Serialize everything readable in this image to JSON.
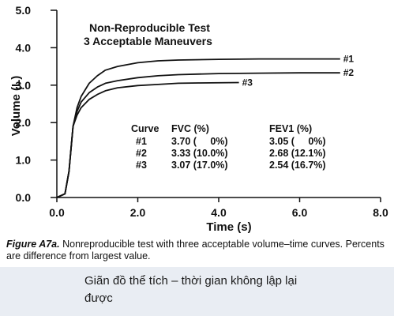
{
  "chart_data": {
    "type": "line",
    "title": "Non-Reproducible Test",
    "subtitle": "3 Acceptable Maneuvers",
    "xlabel": "Time (s)",
    "ylabel": "Volume (L)",
    "xlim": [
      0,
      8
    ],
    "ylim": [
      0,
      5
    ],
    "x_ticks": [
      "0.0",
      "2.0",
      "4.0",
      "6.0",
      "8.0"
    ],
    "y_ticks": [
      "0.0",
      "1.0",
      "2.0",
      "3.0",
      "4.0",
      "5.0"
    ],
    "grid": false,
    "series": [
      {
        "name": "#1",
        "x": [
          0,
          0.2,
          0.3,
          0.4,
          0.5,
          0.6,
          0.8,
          1.0,
          1.2,
          1.5,
          2.0,
          2.5,
          3.0,
          4.0,
          5.0,
          6.0,
          7.0
        ],
        "y": [
          0,
          0.1,
          0.7,
          1.9,
          2.4,
          2.7,
          3.05,
          3.25,
          3.4,
          3.5,
          3.6,
          3.65,
          3.67,
          3.69,
          3.7,
          3.7,
          3.7
        ]
      },
      {
        "name": "#2",
        "x": [
          0,
          0.2,
          0.3,
          0.4,
          0.5,
          0.6,
          0.8,
          1.0,
          1.2,
          1.5,
          2.0,
          2.5,
          3.0,
          4.0,
          5.0,
          6.0,
          7.0
        ],
        "y": [
          0,
          0.1,
          0.7,
          1.9,
          2.3,
          2.55,
          2.8,
          2.95,
          3.05,
          3.12,
          3.2,
          3.25,
          3.28,
          3.31,
          3.32,
          3.33,
          3.33
        ]
      },
      {
        "name": "#3",
        "x": [
          0,
          0.2,
          0.3,
          0.4,
          0.5,
          0.6,
          0.8,
          1.0,
          1.2,
          1.5,
          2.0,
          2.5,
          3.0,
          3.5,
          4.5
        ],
        "y": [
          0,
          0.1,
          0.7,
          1.9,
          2.2,
          2.4,
          2.62,
          2.75,
          2.85,
          2.93,
          2.99,
          3.02,
          3.05,
          3.06,
          3.07
        ]
      }
    ],
    "table": {
      "headers": [
        "Curve",
        "FVC (%)",
        "FEV1 (%)"
      ],
      "rows": [
        [
          "#1",
          "3.70 (     0%)",
          "3.05 (     0%)"
        ],
        [
          "#2",
          "3.33 (10.0%)",
          "2.68 (12.1%)"
        ],
        [
          "#3",
          "3.07 (17.0%)",
          "2.54 (16.7%)"
        ]
      ]
    }
  },
  "caption": {
    "figure_ref": "Figure A7a.",
    "text": "Nonreproducible test with three acceptable volume–time curves. Percents are difference from largest value."
  },
  "footer": {
    "text": "Giãn đồ thể tích – thời gian không lập lại  được"
  },
  "colors": {
    "ink": "#111111",
    "footer_bg": "#e9edf3"
  }
}
